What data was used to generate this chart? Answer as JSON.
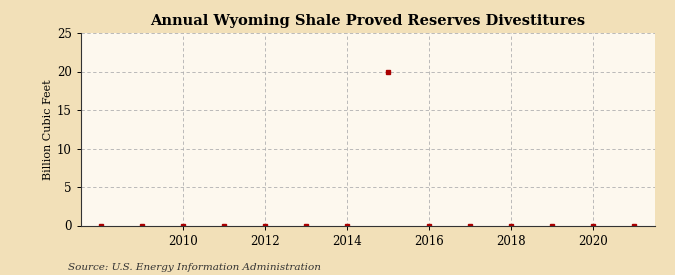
{
  "title": "Annual Wyoming Shale Proved Reserves Divestitures",
  "ylabel": "Billion Cubic Feet",
  "source": "Source: U.S. Energy Information Administration",
  "background_color": "#f2e0b8",
  "plot_background_color": "#fdf8ee",
  "grid_color": "#b0b0b0",
  "marker_color": "#aa0000",
  "years": [
    2008,
    2009,
    2010,
    2011,
    2012,
    2013,
    2014,
    2015,
    2016,
    2017,
    2018,
    2019,
    2020,
    2021
  ],
  "values": [
    0.0,
    0.0,
    0.0,
    0.0,
    0.0,
    0.0,
    0.0,
    19.9,
    0.0,
    0.0,
    0.0,
    0.0,
    0.0,
    0.0
  ],
  "ylim": [
    0,
    25
  ],
  "yticks": [
    0,
    5,
    10,
    15,
    20,
    25
  ],
  "xlim": [
    2007.5,
    2021.5
  ],
  "xticks": [
    2010,
    2012,
    2014,
    2016,
    2018,
    2020
  ],
  "title_fontsize": 10.5,
  "tick_fontsize": 8.5,
  "ylabel_fontsize": 8,
  "source_fontsize": 7.5
}
